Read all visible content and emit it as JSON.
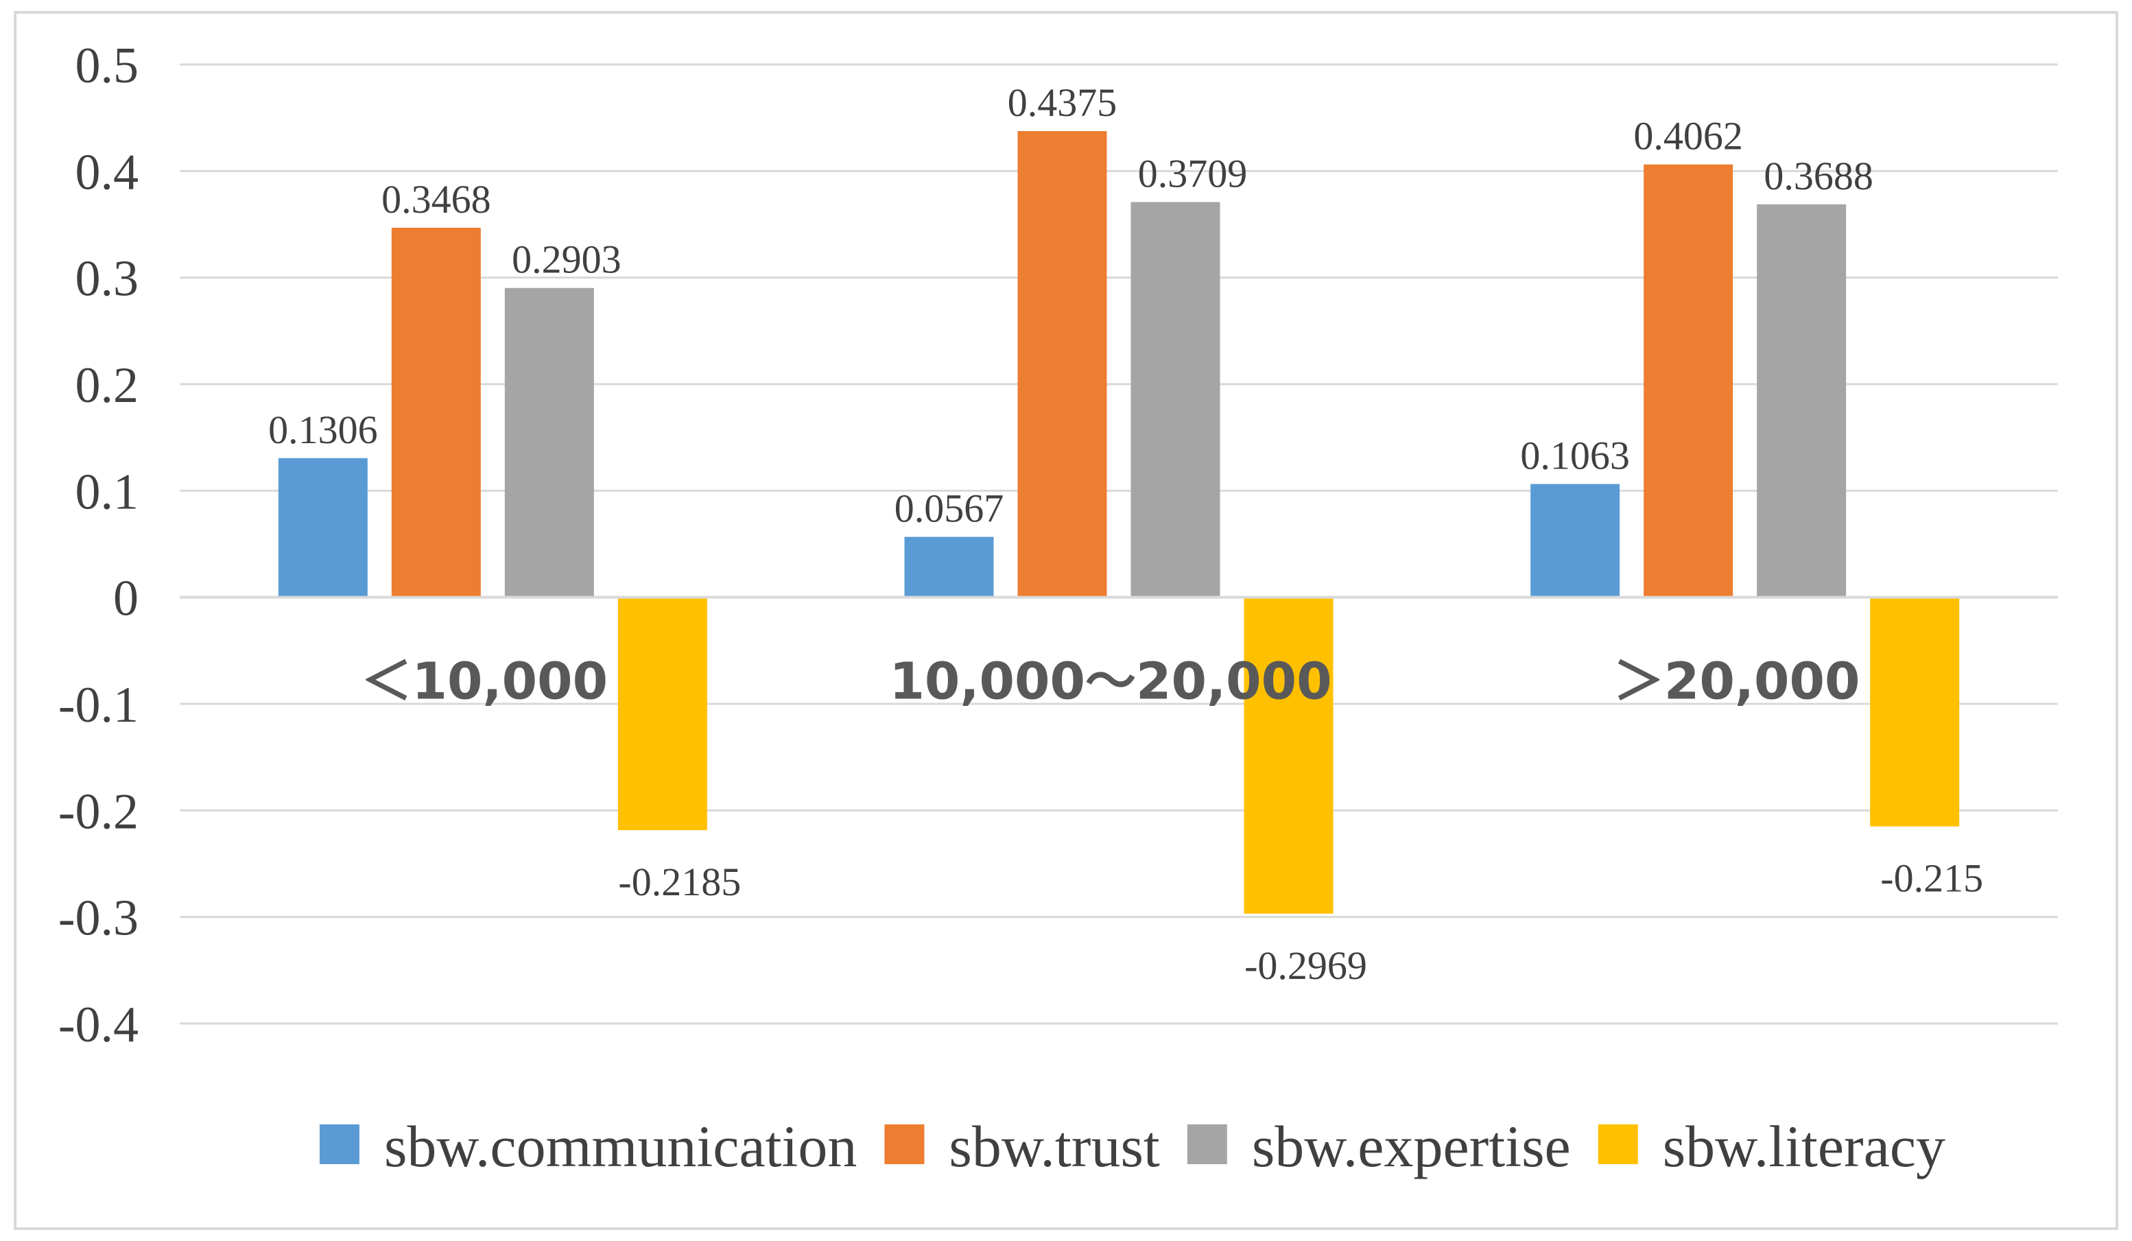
{
  "chart_data": {
    "type": "bar",
    "categories": [
      "＜10,000",
      "10,000～20,000",
      "＞20,000"
    ],
    "series": [
      {
        "name": "sbw.communication",
        "color": "#5b9bd5",
        "values": [
          0.1306,
          0.0567,
          0.1063
        ],
        "labels": [
          "0.1306",
          "0.0567",
          "0.1063"
        ]
      },
      {
        "name": "sbw.trust",
        "color": "#ed7d31",
        "values": [
          0.3468,
          0.4375,
          0.4062
        ],
        "labels": [
          "0.3468",
          "0.4375",
          "0.4062"
        ]
      },
      {
        "name": "sbw.expertise",
        "color": "#a5a5a5",
        "values": [
          0.2903,
          0.3709,
          0.3688
        ],
        "labels": [
          "0.2903",
          "0.3709",
          "0.3688"
        ]
      },
      {
        "name": "sbw.literacy",
        "color": "#ffc000",
        "values": [
          -0.2185,
          -0.2969,
          -0.215
        ],
        "labels": [
          "-0.2185",
          "-0.2969",
          "-0.215"
        ]
      }
    ],
    "ylim": [
      -0.4,
      0.5
    ],
    "yticks": [
      0.5,
      0.4,
      0.3,
      0.2,
      0.1,
      0,
      -0.1,
      -0.2,
      -0.3,
      -0.4
    ],
    "ytick_labels": [
      "0.5",
      "0.4",
      "0.3",
      "0.2",
      "0.1",
      "0",
      "-0.1",
      "-0.2",
      "-0.3",
      "-0.4"
    ],
    "grid": true,
    "legend_position": "bottom"
  }
}
